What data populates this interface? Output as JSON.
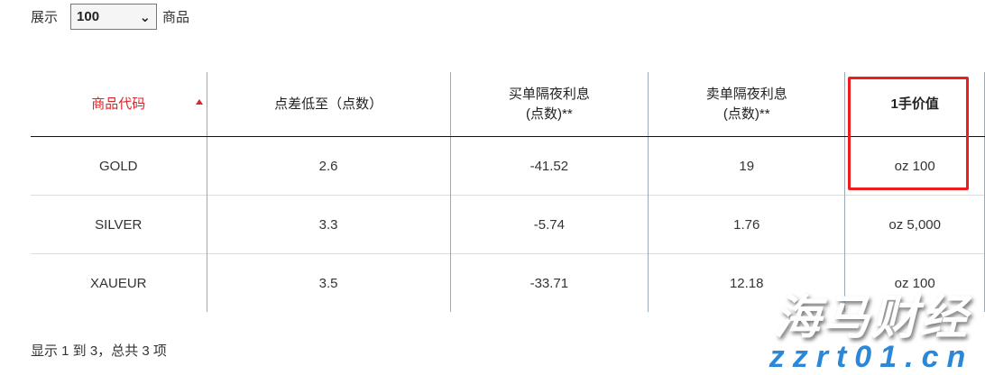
{
  "top": {
    "show_label": "展示",
    "page_size": "100",
    "items_label": "商品"
  },
  "table": {
    "headers": [
      "商品代码",
      "点差低至（点数）",
      "买单隔夜利息\n(点数)**",
      "卖单隔夜利息\n(点数)**",
      "1手价值"
    ],
    "sorted_column": 0,
    "sort_direction": "ascending",
    "rows": [
      [
        "GOLD",
        "2.6",
        "-41.52",
        "19",
        "oz 100"
      ],
      [
        "SILVER",
        "3.3",
        "-5.74",
        "1.76",
        "oz 5,000"
      ],
      [
        "XAUEUR",
        "3.5",
        "-33.71",
        "12.18",
        "oz 100"
      ]
    ]
  },
  "highlight_color": "#ee1c1c",
  "accent_color": "#d9262b",
  "footer": "显示 1 到 3，总共 3 项",
  "watermark": {
    "line1": "海马财经",
    "line2": "zzrt01.cn"
  }
}
